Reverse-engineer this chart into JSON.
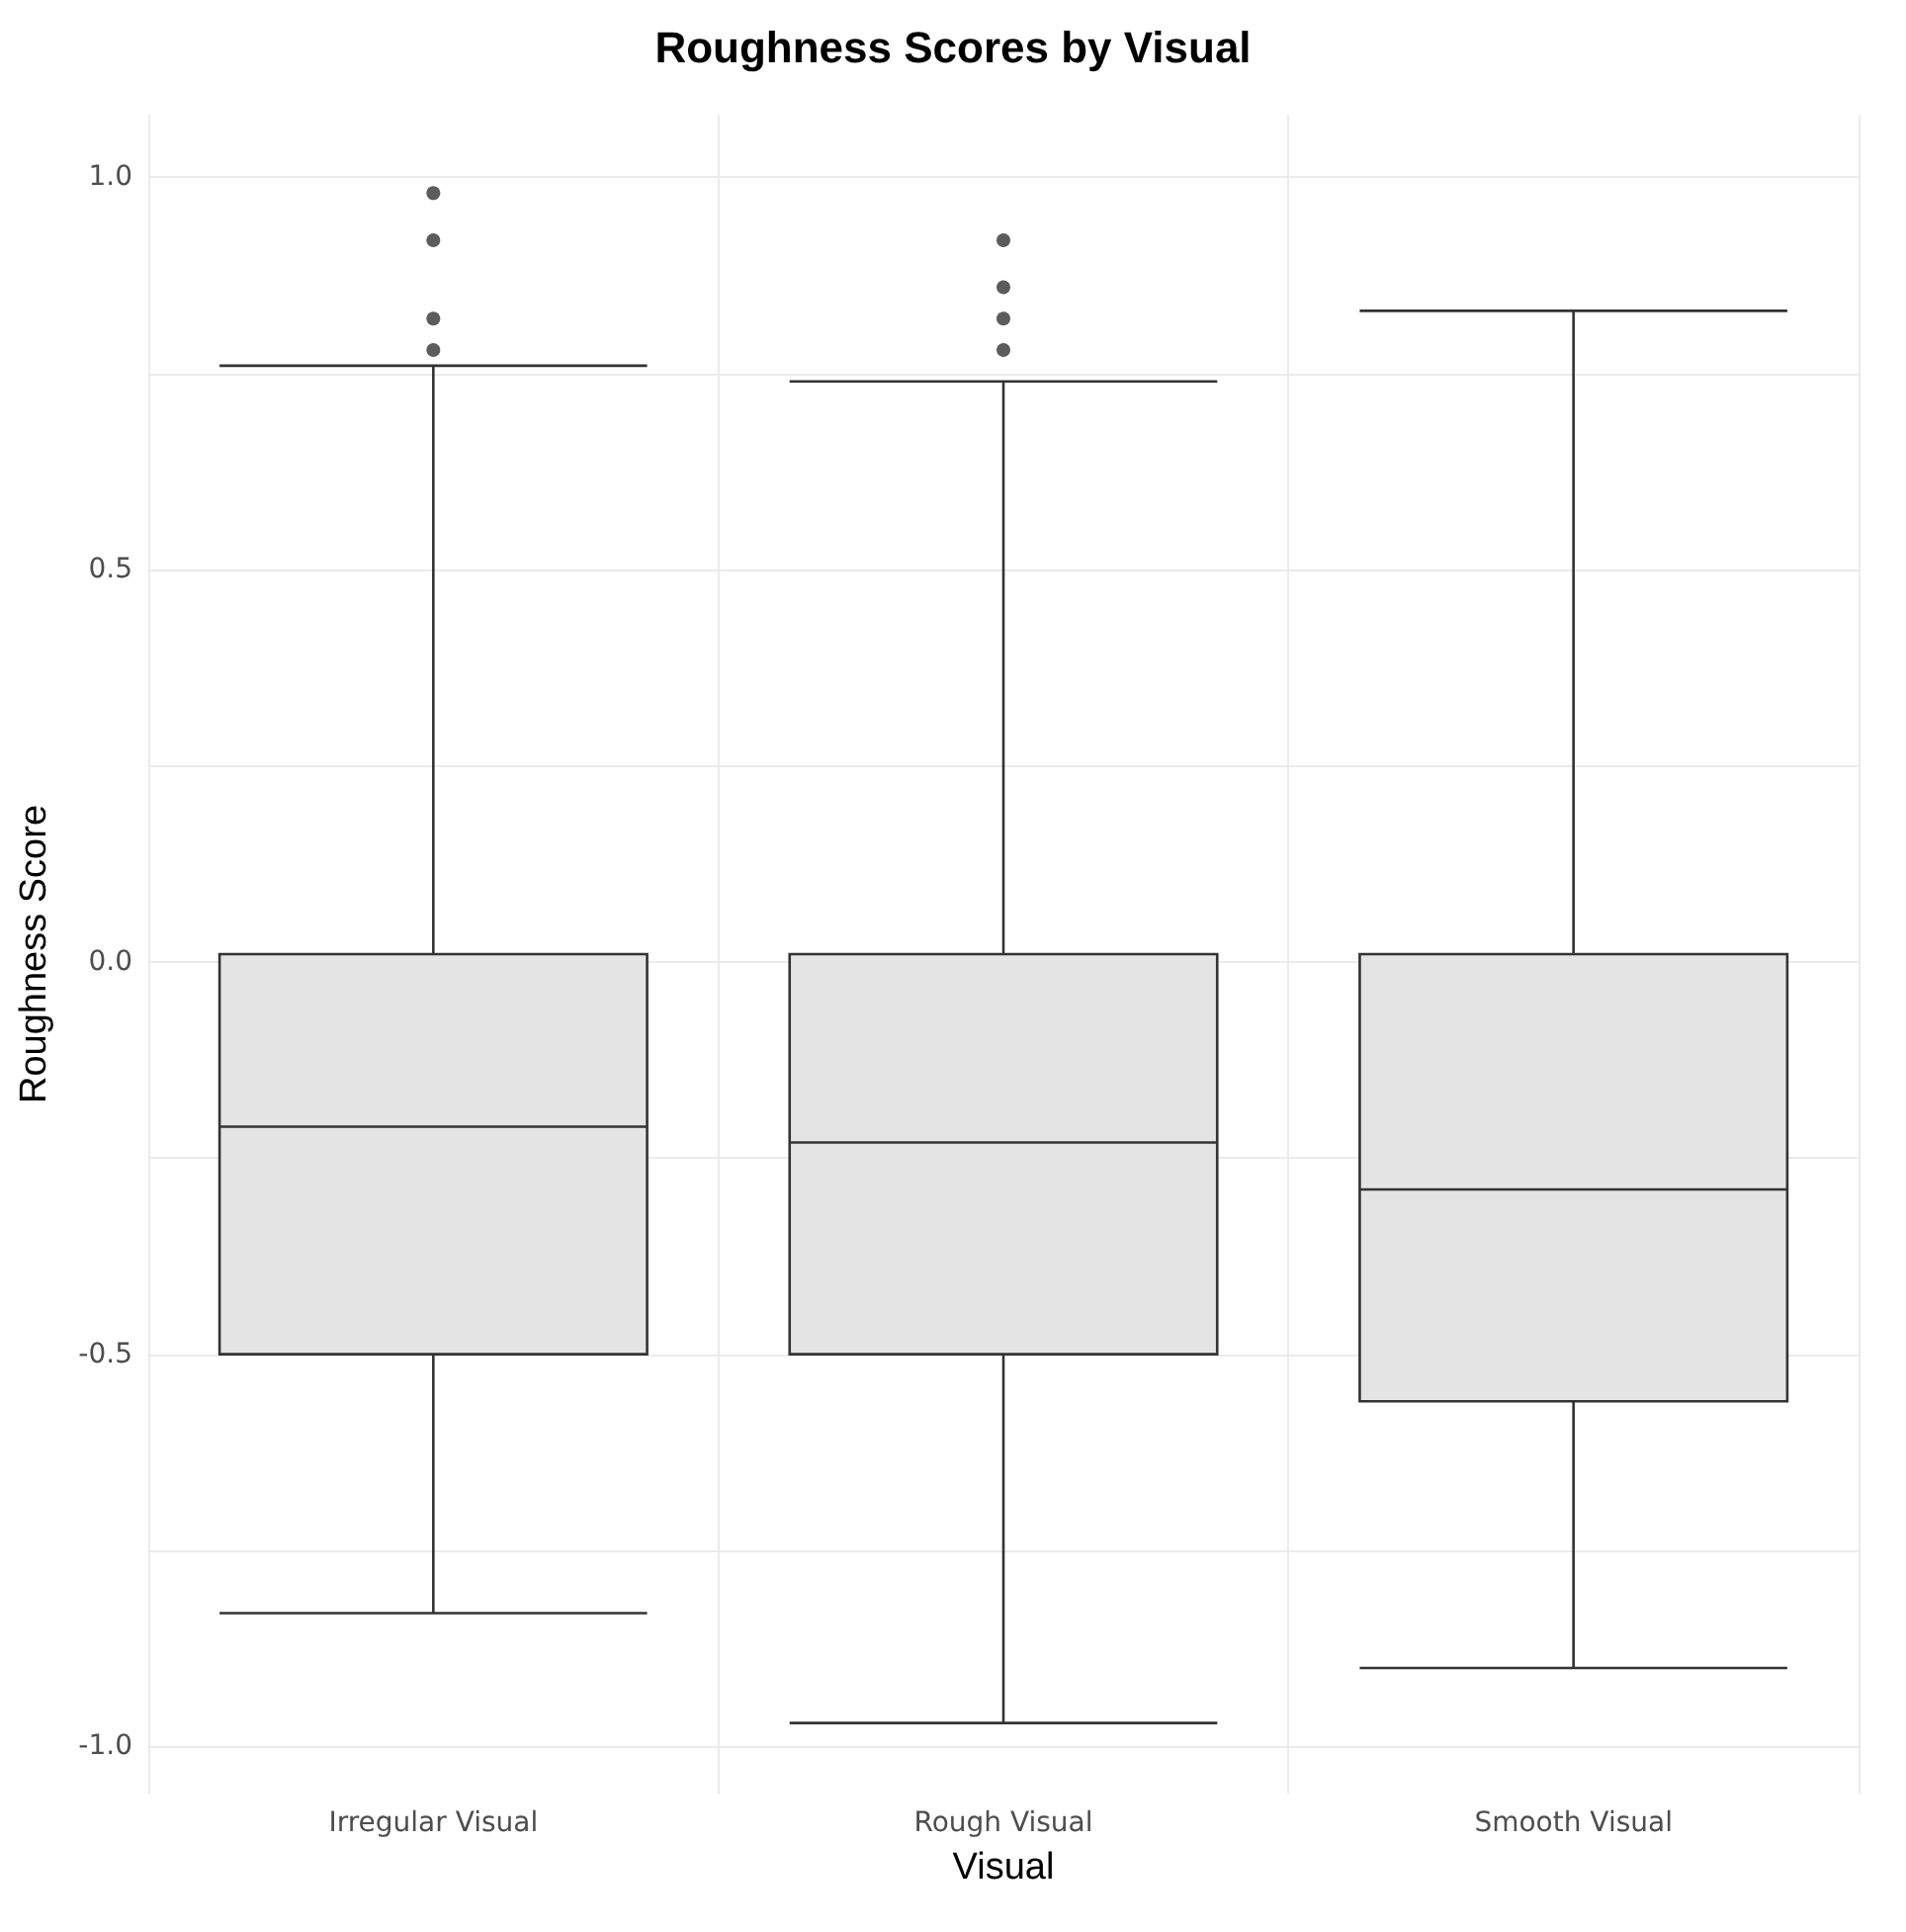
{
  "chart_data": {
    "type": "box",
    "title": "Roughness Scores by Visual",
    "xlabel": "Visual",
    "ylabel": "Roughness Score",
    "categories": [
      "Irregular Visual",
      "Rough Visual",
      "Smooth Visual"
    ],
    "boxes": [
      {
        "low": -0.83,
        "q1": -0.5,
        "median": -0.21,
        "q3": 0.01,
        "high": 0.76,
        "outliers": [
          0.98,
          0.92,
          0.82,
          0.78
        ]
      },
      {
        "low": -0.97,
        "q1": -0.5,
        "median": -0.23,
        "q3": 0.01,
        "high": 0.74,
        "outliers": [
          0.92,
          0.86,
          0.82,
          0.78
        ]
      },
      {
        "low": -0.9,
        "q1": -0.56,
        "median": -0.29,
        "q3": 0.01,
        "high": 0.83
      }
    ],
    "color": "#e4e4e4",
    "ylim": [
      -1.06,
      1.08
    ],
    "yticks": [
      {
        "value": -1,
        "label": "-1.0"
      },
      {
        "value": -0.75,
        "label": null
      },
      {
        "value": -0.5,
        "label": "-0.5"
      },
      {
        "value": -0.25,
        "label": null
      },
      {
        "value": 0,
        "label": "0.0"
      },
      {
        "value": 0.25,
        "label": null
      },
      {
        "value": 0.5,
        "label": "0.5"
      },
      {
        "value": 0.75,
        "label": null
      },
      {
        "value": 1,
        "label": "1.0"
      }
    ],
    "grid": true,
    "marker": "circle"
  }
}
